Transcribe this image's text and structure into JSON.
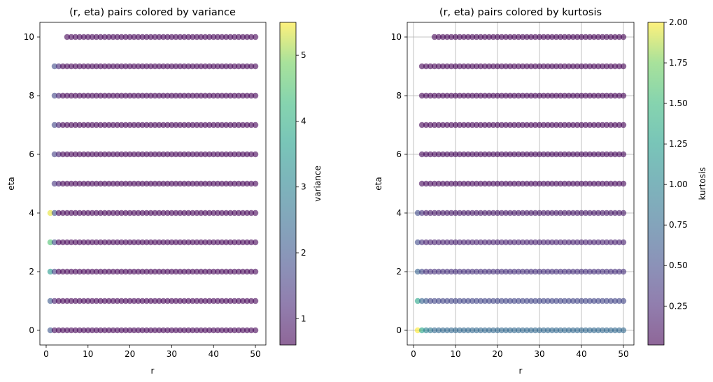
{
  "chart_data": [
    {
      "type": "scatter",
      "title": "(r, eta) pairs colored by variance",
      "xlabel": "r",
      "ylabel": "eta",
      "xlim": [
        -1.5,
        52.5
      ],
      "ylim": [
        -0.5,
        10.5
      ],
      "xticks": [
        0,
        10,
        20,
        30,
        40,
        50
      ],
      "yticks": [
        0,
        2,
        4,
        6,
        8,
        10
      ],
      "grid": false,
      "colormap": "viridis",
      "alpha": 0.6,
      "colorbar": {
        "label": "variance",
        "range": [
          0.6,
          5.5
        ],
        "ticks": [
          1,
          2,
          3,
          4,
          5
        ]
      },
      "rows": [
        {
          "eta": 0,
          "r_start": 1,
          "r_end": 50,
          "first_values": [
            2.0,
            0.7
          ],
          "rest_value": 0.65
        },
        {
          "eta": 1,
          "r_start": 1,
          "r_end": 50,
          "first_values": [
            2.1,
            1.0
          ],
          "rest_value": 0.65
        },
        {
          "eta": 2,
          "r_start": 1,
          "r_end": 50,
          "first_values": [
            3.5,
            1.6
          ],
          "rest_value": 0.65
        },
        {
          "eta": 3,
          "r_start": 1,
          "r_end": 50,
          "first_values": [
            4.5,
            1.8
          ],
          "rest_value": 0.65
        },
        {
          "eta": 4,
          "r_start": 1,
          "r_end": 50,
          "first_values": [
            5.4,
            1.9
          ],
          "rest_value": 0.65
        },
        {
          "eta": 5,
          "r_start": 2,
          "r_end": 50,
          "first_values": [
            1.4,
            1.0
          ],
          "rest_value": 0.65
        },
        {
          "eta": 6,
          "r_start": 2,
          "r_end": 50,
          "first_values": [
            1.6,
            1.1
          ],
          "rest_value": 0.65
        },
        {
          "eta": 7,
          "r_start": 2,
          "r_end": 50,
          "first_values": [
            1.7,
            1.1
          ],
          "rest_value": 0.65
        },
        {
          "eta": 8,
          "r_start": 2,
          "r_end": 50,
          "first_values": [
            1.7,
            1.1
          ],
          "rest_value": 0.65
        },
        {
          "eta": 9,
          "r_start": 2,
          "r_end": 50,
          "first_values": [
            1.8,
            1.2
          ],
          "rest_value": 0.65
        },
        {
          "eta": 10,
          "r_start": 5,
          "r_end": 50,
          "first_values": [],
          "rest_value": 0.65
        }
      ]
    },
    {
      "type": "scatter",
      "title": "(r, eta) pairs colored by kurtosis",
      "xlabel": "r",
      "ylabel": "eta",
      "xlim": [
        -1.5,
        52.5
      ],
      "ylim": [
        -0.5,
        10.5
      ],
      "xticks": [
        0,
        10,
        20,
        30,
        40,
        50
      ],
      "yticks": [
        0,
        2,
        4,
        6,
        8,
        10
      ],
      "grid": true,
      "colormap": "viridis",
      "alpha": 0.6,
      "colorbar": {
        "label": "kurtosis",
        "range": [
          0.01,
          2.0
        ],
        "ticks": [
          0.25,
          0.5,
          0.75,
          1.0,
          1.25,
          1.5,
          1.75,
          2.0
        ],
        "tick_labels": [
          "0.25",
          "0.50",
          "0.75",
          "1.00",
          "1.25",
          "1.50",
          "1.75",
          "2.00"
        ]
      },
      "rows": [
        {
          "eta": 0,
          "r_start": 1,
          "r_end": 50,
          "first_values": [
            2.0,
            1.3,
            1.0,
            0.9
          ],
          "rest_value": 0.75
        },
        {
          "eta": 1,
          "r_start": 1,
          "r_end": 50,
          "first_values": [
            1.3,
            0.7,
            0.6
          ],
          "rest_value": 0.45
        },
        {
          "eta": 2,
          "r_start": 1,
          "r_end": 50,
          "first_values": [
            0.7,
            0.45
          ],
          "rest_value": 0.3
        },
        {
          "eta": 3,
          "r_start": 1,
          "r_end": 50,
          "first_values": [
            0.5,
            0.3
          ],
          "rest_value": 0.2
        },
        {
          "eta": 4,
          "r_start": 1,
          "r_end": 50,
          "first_values": [
            0.5,
            0.3
          ],
          "rest_value": 0.15
        },
        {
          "eta": 5,
          "r_start": 2,
          "r_end": 50,
          "first_values": [],
          "rest_value": 0.05
        },
        {
          "eta": 6,
          "r_start": 2,
          "r_end": 50,
          "first_values": [],
          "rest_value": 0.05
        },
        {
          "eta": 7,
          "r_start": 2,
          "r_end": 50,
          "first_values": [],
          "rest_value": 0.03
        },
        {
          "eta": 8,
          "r_start": 2,
          "r_end": 50,
          "first_values": [],
          "rest_value": 0.03
        },
        {
          "eta": 9,
          "r_start": 2,
          "r_end": 50,
          "first_values": [],
          "rest_value": 0.02
        },
        {
          "eta": 10,
          "r_start": 5,
          "r_end": 50,
          "first_values": [],
          "rest_value": 0.02
        }
      ]
    }
  ]
}
